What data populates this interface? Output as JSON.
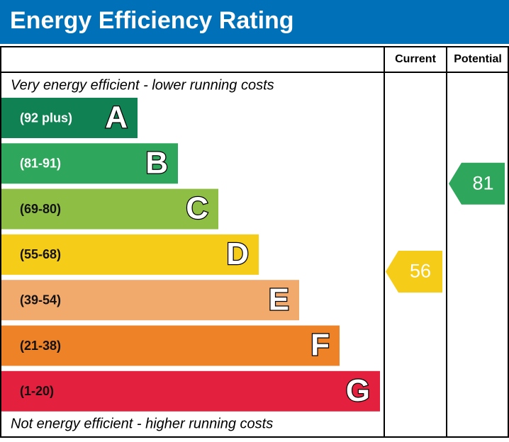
{
  "header": {
    "title": "Energy Efficiency Rating"
  },
  "columns": [
    "Current",
    "Potential"
  ],
  "notes": {
    "top": "Very energy efficient - lower running costs",
    "bottom": "Not energy efficient - higher running costs"
  },
  "bands": [
    {
      "range": "(92 plus)",
      "letter": "A",
      "color": "#0f8152",
      "text_color": "#ffffff"
    },
    {
      "range": "(81-91)",
      "letter": "B",
      "color": "#2ea65b",
      "text_color": "#ffffff"
    },
    {
      "range": "(69-80)",
      "letter": "C",
      "color": "#8fbe44",
      "text_color": "#111111"
    },
    {
      "range": "(55-68)",
      "letter": "D",
      "color": "#f5cc18",
      "text_color": "#111111"
    },
    {
      "range": "(39-54)",
      "letter": "E",
      "color": "#f2aa6c",
      "text_color": "#111111"
    },
    {
      "range": "(21-38)",
      "letter": "F",
      "color": "#ed8226",
      "text_color": "#111111"
    },
    {
      "range": "(1-20)",
      "letter": "G",
      "color": "#e3203d",
      "text_color": "#111111"
    }
  ],
  "ratings": [
    {
      "value": 56,
      "color": "#f5cc18"
    },
    {
      "value": 81,
      "color": "#2ea65b"
    }
  ]
}
